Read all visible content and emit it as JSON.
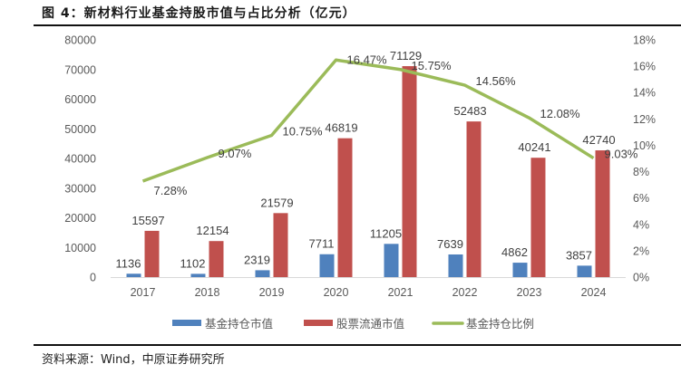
{
  "header": {
    "title": "图 4：新材料行业基金持股市值与占比分析（亿元）"
  },
  "footer": {
    "source": "资料来源：Wind，中原证券研究所"
  },
  "colors": {
    "fund_holding": "#4F81BD",
    "circulating_mv": "#C0504D",
    "ratio_line": "#9BBB59",
    "axis_text": "#595959",
    "label_text": "#404040",
    "axis_line": "#D9D9D9"
  },
  "chart_data": {
    "type": "bar",
    "title": "新材料行业基金持股市值与占比分析（亿元）",
    "categories": [
      "2017",
      "2018",
      "2019",
      "2020",
      "2021",
      "2022",
      "2023",
      "2024"
    ],
    "series": [
      {
        "name": "基金持仓市值",
        "type": "bar",
        "axis": "left",
        "values": [
          1136,
          1102,
          2319,
          7711,
          11205,
          7639,
          4862,
          3857
        ]
      },
      {
        "name": "股票流通市值",
        "type": "bar",
        "axis": "left",
        "values": [
          15597,
          12154,
          21579,
          46819,
          71129,
          52483,
          40241,
          42740
        ]
      },
      {
        "name": "基金持仓比例",
        "type": "line",
        "axis": "right",
        "values": [
          7.28,
          9.07,
          10.75,
          16.47,
          15.75,
          14.56,
          12.08,
          9.03
        ],
        "labels": [
          "7.28%",
          "9.07%",
          "10.75%",
          "16.47%",
          "15.75%",
          "14.56%",
          "12.08%",
          "9.03%"
        ]
      }
    ],
    "left_axis": {
      "ylim": [
        0,
        80000
      ],
      "ticks": [
        0,
        10000,
        20000,
        30000,
        40000,
        50000,
        60000,
        70000,
        80000
      ],
      "tick_labels": [
        "0",
        "10000",
        "20000",
        "30000",
        "40000",
        "50000",
        "60000",
        "70000",
        "80000"
      ]
    },
    "right_axis": {
      "ylim": [
        0,
        18
      ],
      "ticks": [
        0,
        2,
        4,
        6,
        8,
        10,
        12,
        14,
        16,
        18
      ],
      "tick_labels": [
        "0%",
        "2%",
        "4%",
        "6%",
        "8%",
        "10%",
        "12%",
        "14%",
        "16%",
        "18%"
      ]
    },
    "xlabel": "",
    "ylabel": "",
    "grid": false,
    "legend": {
      "position": "bottom",
      "entries": [
        "基金持仓市值",
        "股票流通市值",
        "基金持仓比例"
      ]
    }
  }
}
